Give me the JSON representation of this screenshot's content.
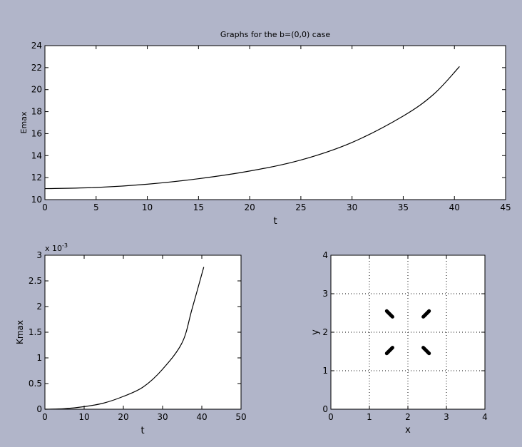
{
  "chart_data": [
    {
      "type": "line",
      "title": "Graphs for the b=(0,0)  case",
      "xlabel": "t",
      "ylabel": "Emax",
      "xlim": [
        0,
        45
      ],
      "ylim": [
        10,
        24
      ],
      "xticks": [
        0,
        5,
        10,
        15,
        20,
        25,
        30,
        35,
        40,
        45
      ],
      "yticks": [
        10,
        12,
        14,
        16,
        18,
        20,
        22,
        24
      ],
      "grid": false,
      "series": [
        {
          "x": [
            0,
            5,
            10,
            15,
            20,
            25,
            30,
            35,
            38,
            40.5
          ],
          "y": [
            11.0,
            11.1,
            11.4,
            11.9,
            12.6,
            13.6,
            15.2,
            17.6,
            19.6,
            22.1
          ]
        }
      ]
    },
    {
      "type": "line",
      "title": "",
      "xlabel": "t",
      "ylabel": "Kmax",
      "xlim": [
        0,
        50
      ],
      "ylim": [
        0,
        3
      ],
      "xticks": [
        0,
        10,
        20,
        30,
        40,
        50
      ],
      "yticks": [
        0,
        0.5,
        1,
        1.5,
        2,
        2.5,
        3
      ],
      "ytick_labels": [
        "0",
        "0.5",
        "1",
        "1.5",
        "2",
        "2.5",
        "3"
      ],
      "exponent_label": "x 10",
      "exponent_power": "-3",
      "grid": false,
      "series": [
        {
          "x": [
            0,
            5,
            10,
            15,
            20,
            25,
            30,
            35,
            37.5,
            40.5
          ],
          "y": [
            0,
            0.01,
            0.05,
            0.12,
            0.25,
            0.43,
            0.78,
            1.3,
            1.95,
            2.77
          ]
        }
      ]
    },
    {
      "type": "scatter",
      "title": "",
      "xlabel": "x",
      "ylabel": "y",
      "xlim": [
        0,
        4
      ],
      "ylim": [
        0,
        4
      ],
      "xticks": [
        0,
        1,
        2,
        3,
        4
      ],
      "yticks": [
        0,
        1,
        2,
        3,
        4
      ],
      "grid": true,
      "grid_style": "dotted",
      "segments": [
        {
          "x1": 1.45,
          "y1": 2.55,
          "x2": 1.6,
          "y2": 2.4
        },
        {
          "x1": 2.55,
          "y1": 2.55,
          "x2": 2.4,
          "y2": 2.4
        },
        {
          "x1": 1.45,
          "y1": 1.45,
          "x2": 1.6,
          "y2": 1.6
        },
        {
          "x1": 2.55,
          "y1": 1.45,
          "x2": 2.4,
          "y2": 1.6
        }
      ]
    }
  ]
}
